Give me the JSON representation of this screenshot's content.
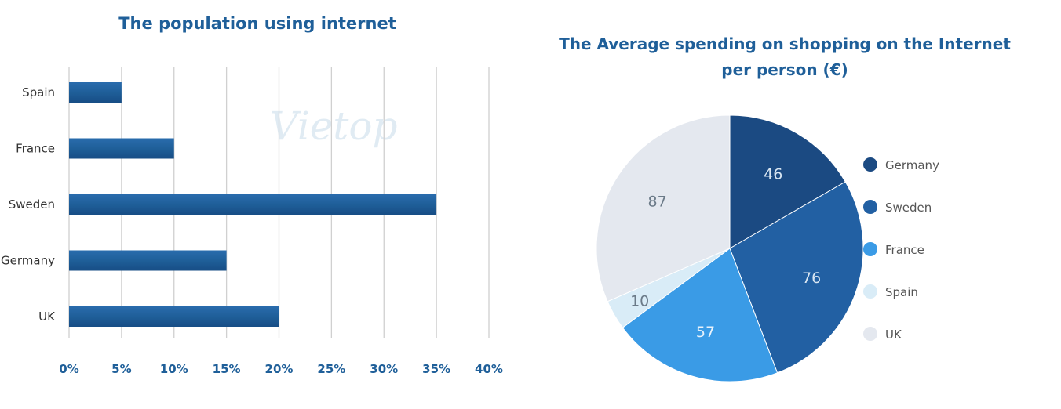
{
  "watermark": "Vietop",
  "chart_data": [
    {
      "type": "bar",
      "orientation": "horizontal",
      "title": "The population using internet",
      "categories": [
        "Spain",
        "France",
        "Sweden",
        "Germany",
        "UK"
      ],
      "values": [
        5,
        10,
        35,
        15,
        20
      ],
      "unit": "%",
      "xlim": [
        0,
        40
      ],
      "ticks": [
        0,
        5,
        10,
        15,
        20,
        25,
        30,
        35,
        40
      ],
      "tick_labels": [
        "0%",
        "5%",
        "10%",
        "15%",
        "20%",
        "25%",
        "30%",
        "35%",
        "40%"
      ],
      "grid": "vertical",
      "color": "#1f5f99"
    },
    {
      "type": "pie",
      "title_lines": [
        "The Average spending on shopping on the Internet",
        "per person (€)"
      ],
      "labels": [
        "Germany",
        "Sweden",
        "France",
        "Spain",
        "UK"
      ],
      "values": [
        46,
        76,
        57,
        10,
        87
      ],
      "colors": [
        "#1b4a82",
        "#2260a3",
        "#3a9be6",
        "#d9ecf7",
        "#e4e8ef"
      ],
      "label_colors": [
        "#d9e6f2",
        "#d9e6f2",
        "#e8f2fb",
        "#6b7a88",
        "#6b7a88"
      ],
      "legend": "right"
    }
  ]
}
